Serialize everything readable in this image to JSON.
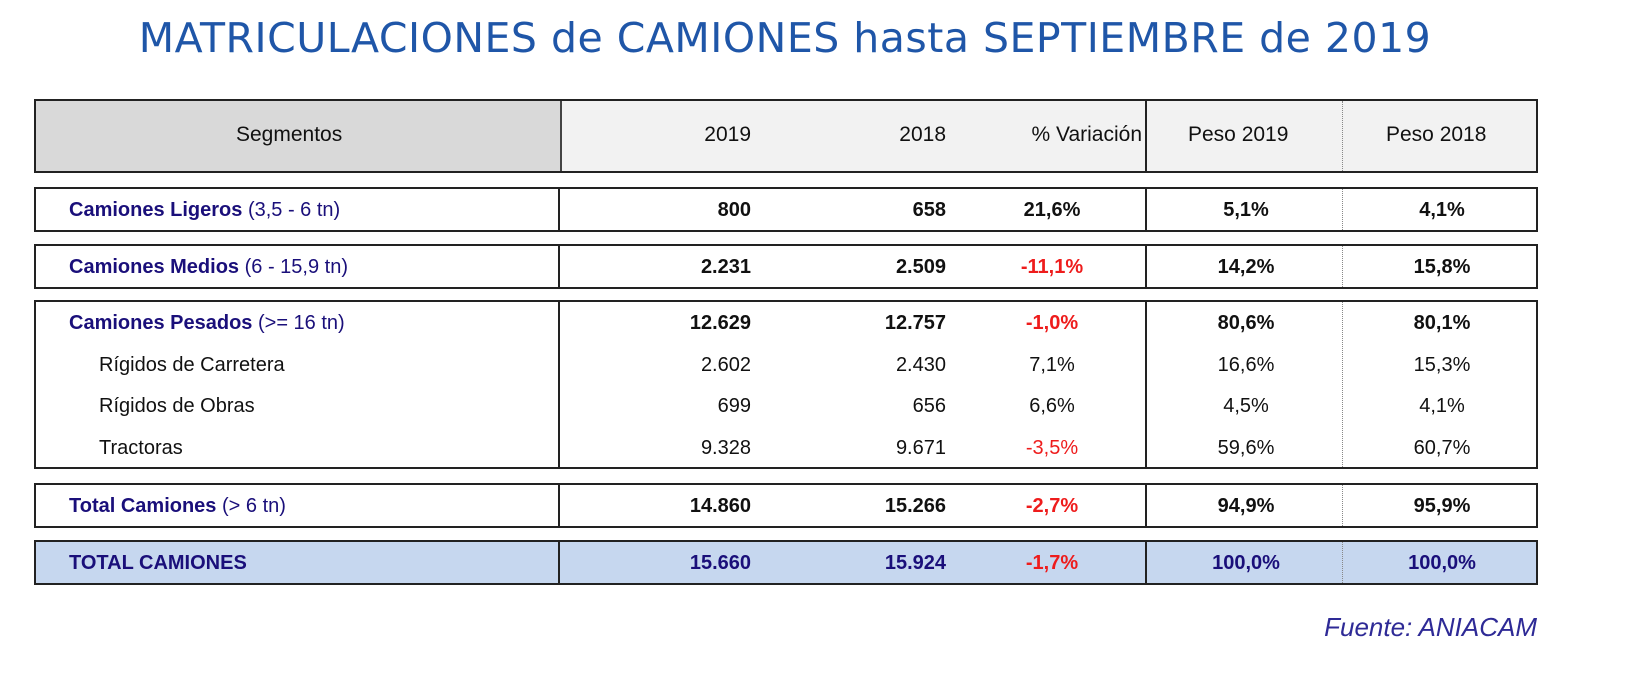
{
  "chart_data": {
    "type": "table",
    "title": "MATRICULACIONES de CAMIONES hasta SEPTIEMBRE de 2019",
    "columns": [
      "Segmentos",
      "2019",
      "2018",
      "% Variación",
      "Peso 2019",
      "Peso 2018"
    ],
    "groups": [
      {
        "total": false,
        "rows": [
          {
            "label": "Camiones Ligeros",
            "sub": " (3,5 - 6 tn)",
            "level": 0,
            "bold": true,
            "values": [
              "800",
              "658",
              "21,6%",
              "5,1%",
              "4,1%"
            ]
          }
        ]
      },
      {
        "total": false,
        "rows": [
          {
            "label": "Camiones Medios",
            "sub": " (6 - 15,9 tn)",
            "level": 0,
            "bold": true,
            "values": [
              "2.231",
              "2.509",
              "-11,1%",
              "14,2%",
              "15,8%"
            ]
          }
        ]
      },
      {
        "total": false,
        "rows": [
          {
            "label": "Camiones Pesados",
            "sub": " (>= 16 tn)",
            "level": 0,
            "bold": true,
            "values": [
              "12.629",
              "12.757",
              "-1,0%",
              "80,6%",
              "80,1%"
            ]
          },
          {
            "label": "Rígidos de Carretera",
            "sub": "",
            "level": 1,
            "bold": false,
            "values": [
              "2.602",
              "2.430",
              "7,1%",
              "16,6%",
              "15,3%"
            ]
          },
          {
            "label": "Rígidos de Obras",
            "sub": "",
            "level": 1,
            "bold": false,
            "values": [
              "699",
              "656",
              "6,6%",
              "4,5%",
              "4,1%"
            ]
          },
          {
            "label": "Tractoras",
            "sub": "",
            "level": 1,
            "bold": false,
            "values": [
              "9.328",
              "9.671",
              "-3,5%",
              "59,6%",
              "60,7%"
            ]
          }
        ]
      },
      {
        "total": false,
        "rows": [
          {
            "label": "Total Camiones ",
            "sub": " (> 6 tn)",
            "level": 0,
            "bold": true,
            "values": [
              "14.860",
              "15.266",
              "-2,7%",
              "94,9%",
              "95,9%"
            ]
          }
        ]
      },
      {
        "total": true,
        "rows": [
          {
            "label": "TOTAL CAMIONES",
            "sub": "",
            "level": 0,
            "bold": true,
            "values": [
              "15.660",
              "15.924",
              "-1,7%",
              "100,0%",
              "100,0%"
            ]
          }
        ]
      }
    ],
    "colors": {
      "title": "#1f56a8",
      "label": "#1a0f7a",
      "negative": "#ee1c1c",
      "header_segment_bg": "#d9d9d9",
      "header_bg": "#f2f2f2",
      "total_bg": "#c6d7ef"
    }
  },
  "source": "Fuente: ANIACAM"
}
